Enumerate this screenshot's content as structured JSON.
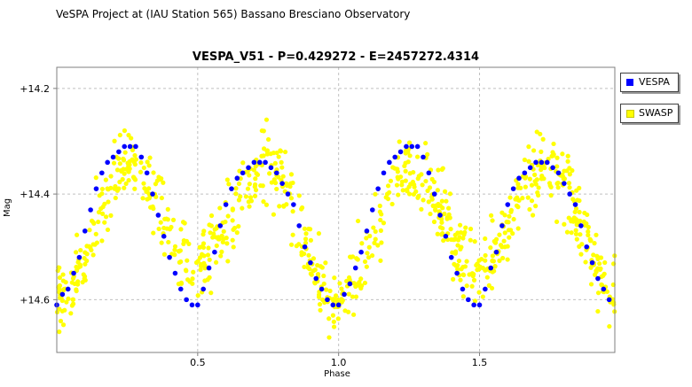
{
  "header": {
    "text": "VeSPA Project at (IAU Station 565) Bassano Bresciano Observatory"
  },
  "chart_data": {
    "type": "scatter",
    "title": "VESPA_V51  -  P=0.429272  -  E=2457272.4314",
    "xlabel": "Phase",
    "ylabel": "Mag",
    "xlim": [
      0.0,
      1.98
    ],
    "ylim": [
      14.7,
      14.16
    ],
    "y_inverted": true,
    "x_ticks": [
      "0.5",
      "1.0",
      "1.5"
    ],
    "x_tick_values": [
      0.5,
      1.0,
      1.5
    ],
    "y_ticks": [
      "+14.2",
      "+14.4",
      "+14.6"
    ],
    "y_tick_values": [
      14.2,
      14.4,
      14.6
    ],
    "grid": true,
    "legend_placement": "right",
    "legend": [
      "VESPA",
      "SWASP"
    ],
    "series": [
      {
        "name": "VESPA",
        "color": "#0000ff",
        "model": {
          "mag_mean": 14.46,
          "amp1": 0.11,
          "amp2": 0.03,
          "phase_offset": 0.0,
          "period_wraps": 2,
          "note": "W UMa-type light curve, primary min at phase 0 and 1, secondary at 0.5"
        },
        "values": [
          [
            0.0,
            14.61
          ],
          [
            0.02,
            14.59
          ],
          [
            0.04,
            14.58
          ],
          [
            0.06,
            14.55
          ],
          [
            0.08,
            14.52
          ],
          [
            0.1,
            14.47
          ],
          [
            0.12,
            14.43
          ],
          [
            0.14,
            14.39
          ],
          [
            0.16,
            14.36
          ],
          [
            0.18,
            14.34
          ],
          [
            0.2,
            14.33
          ],
          [
            0.22,
            14.32
          ],
          [
            0.24,
            14.31
          ],
          [
            0.26,
            14.31
          ],
          [
            0.28,
            14.31
          ],
          [
            0.3,
            14.33
          ],
          [
            0.32,
            14.36
          ],
          [
            0.34,
            14.4
          ],
          [
            0.36,
            14.44
          ],
          [
            0.38,
            14.48
          ],
          [
            0.4,
            14.52
          ],
          [
            0.42,
            14.55
          ],
          [
            0.44,
            14.58
          ],
          [
            0.46,
            14.6
          ],
          [
            0.48,
            14.61
          ],
          [
            0.5,
            14.61
          ],
          [
            0.52,
            14.58
          ],
          [
            0.54,
            14.54
          ],
          [
            0.56,
            14.51
          ],
          [
            0.58,
            14.46
          ],
          [
            0.6,
            14.42
          ],
          [
            0.62,
            14.39
          ],
          [
            0.64,
            14.37
          ],
          [
            0.66,
            14.36
          ],
          [
            0.68,
            14.35
          ],
          [
            0.7,
            14.34
          ],
          [
            0.72,
            14.34
          ],
          [
            0.74,
            14.34
          ],
          [
            0.76,
            14.35
          ],
          [
            0.78,
            14.36
          ],
          [
            0.8,
            14.38
          ],
          [
            0.82,
            14.4
          ],
          [
            0.84,
            14.42
          ],
          [
            0.86,
            14.46
          ],
          [
            0.88,
            14.5
          ],
          [
            0.9,
            14.53
          ],
          [
            0.92,
            14.56
          ],
          [
            0.94,
            14.58
          ],
          [
            0.96,
            14.6
          ],
          [
            0.98,
            14.61
          ],
          [
            1.0,
            14.61
          ],
          [
            1.02,
            14.59
          ],
          [
            1.04,
            14.57
          ],
          [
            1.06,
            14.54
          ],
          [
            1.08,
            14.51
          ],
          [
            1.1,
            14.47
          ],
          [
            1.12,
            14.43
          ],
          [
            1.14,
            14.39
          ],
          [
            1.16,
            14.36
          ],
          [
            1.18,
            14.34
          ],
          [
            1.2,
            14.33
          ],
          [
            1.22,
            14.32
          ],
          [
            1.24,
            14.31
          ],
          [
            1.26,
            14.31
          ],
          [
            1.28,
            14.31
          ],
          [
            1.3,
            14.33
          ],
          [
            1.32,
            14.36
          ],
          [
            1.34,
            14.4
          ],
          [
            1.36,
            14.44
          ],
          [
            1.38,
            14.48
          ],
          [
            1.4,
            14.52
          ],
          [
            1.42,
            14.55
          ],
          [
            1.44,
            14.58
          ],
          [
            1.46,
            14.6
          ],
          [
            1.48,
            14.61
          ],
          [
            1.5,
            14.61
          ],
          [
            1.52,
            14.58
          ],
          [
            1.54,
            14.54
          ],
          [
            1.56,
            14.51
          ],
          [
            1.58,
            14.46
          ],
          [
            1.6,
            14.42
          ],
          [
            1.62,
            14.39
          ],
          [
            1.64,
            14.37
          ],
          [
            1.66,
            14.36
          ],
          [
            1.68,
            14.35
          ],
          [
            1.7,
            14.34
          ],
          [
            1.72,
            14.34
          ],
          [
            1.74,
            14.34
          ],
          [
            1.76,
            14.35
          ],
          [
            1.78,
            14.36
          ],
          [
            1.8,
            14.38
          ],
          [
            1.82,
            14.4
          ],
          [
            1.84,
            14.42
          ],
          [
            1.86,
            14.46
          ],
          [
            1.88,
            14.5
          ],
          [
            1.9,
            14.53
          ],
          [
            1.92,
            14.56
          ],
          [
            1.94,
            14.58
          ],
          [
            1.96,
            14.6
          ]
        ]
      },
      {
        "name": "SWASP",
        "color": "#ffff00",
        "model": {
          "mag_mean": 14.46,
          "amp1": 0.11,
          "amp2": 0.03,
          "scatter": 0.09,
          "count": 900,
          "xrange": [
            0.0,
            1.98
          ],
          "note": "noisy survey photometry following the same light curve"
        }
      }
    ]
  }
}
